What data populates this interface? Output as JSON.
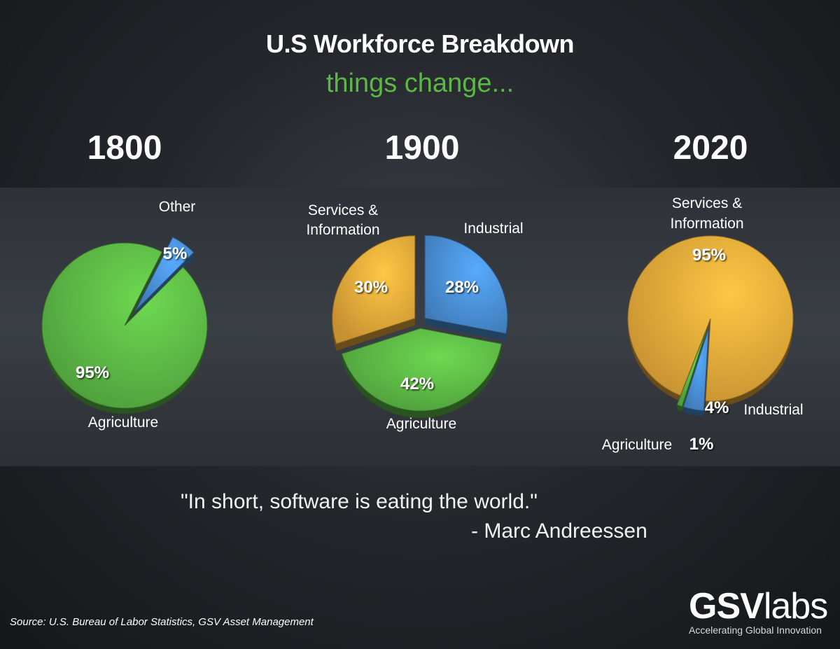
{
  "header": {
    "title": "U.S Workforce Breakdown",
    "subtitle": "things change..."
  },
  "colors": {
    "agriculture": "#5cb845",
    "industrial": "#4a90d6",
    "services": "#e7a93a"
  },
  "chart_data": [
    {
      "type": "pie",
      "title": "1800",
      "slices": [
        {
          "label": "Other",
          "value": 5,
          "value_label": "5%",
          "color": "#4a90d6",
          "exploded": true
        },
        {
          "label": "Agriculture",
          "value": 95,
          "value_label": "95%",
          "color": "#5cb845",
          "exploded": false
        }
      ]
    },
    {
      "type": "pie",
      "title": "1900",
      "slices": [
        {
          "label": "Industrial",
          "value": 28,
          "value_label": "28%",
          "color": "#4a90d6",
          "exploded": true
        },
        {
          "label": "Agriculture",
          "value": 42,
          "value_label": "42%",
          "color": "#5cb845",
          "exploded": true
        },
        {
          "label": "Services & Information",
          "value": 30,
          "value_label": "30%",
          "color": "#e7a93a",
          "exploded": true
        }
      ]
    },
    {
      "type": "pie",
      "title": "2020",
      "slices": [
        {
          "label": "Industrial",
          "value": 4,
          "value_label": "4%",
          "color": "#4a90d6",
          "exploded": true
        },
        {
          "label": "Agriculture",
          "value": 1,
          "value_label": "1%",
          "color": "#5cb845",
          "exploded": true
        },
        {
          "label": "Services & Information",
          "value": 95,
          "value_label": "95%",
          "color": "#e7a93a",
          "exploded": false
        }
      ]
    }
  ],
  "quote": {
    "text": "\"In short, software is eating the world.\"",
    "author": "- Marc Andreessen"
  },
  "footer": {
    "source": "Source: U.S. Bureau of Labor Statistics, GSV Asset Management",
    "logo_bold": "GSV",
    "logo_light": "labs",
    "logo_tagline": "Accelerating Global Innovation"
  }
}
